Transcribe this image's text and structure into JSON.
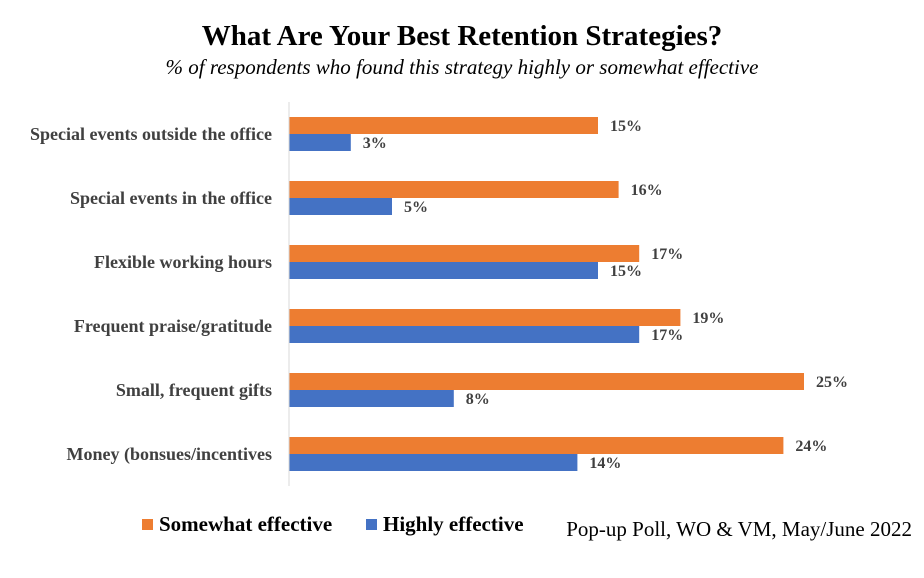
{
  "header": {
    "title": "What Are Your Best Retention Strategies?",
    "subtitle": "% of respondents who found this strategy highly or somewhat effective"
  },
  "source": "Pop-up Poll, WO & VM, May/June 2022",
  "colors": {
    "somewhat": "#ed7d31",
    "highly": "#4472c4",
    "axis": "#d9d9d9"
  },
  "chart_data": {
    "type": "bar",
    "orientation": "horizontal",
    "title": "What Are Your Best Retention Strategies?",
    "subtitle": "% of respondents who found this strategy highly or somewhat effective",
    "categories": [
      "Special events outside the office",
      "Special events in the office",
      "Flexible working hours",
      "Frequent praise/gratitude",
      "Small, frequent gifts",
      "Money (bonsues/incentives"
    ],
    "series": [
      {
        "name": "Somewhat effective",
        "values": [
          15,
          16,
          17,
          19,
          25,
          24
        ]
      },
      {
        "name": "Highly effective",
        "values": [
          3,
          5,
          15,
          17,
          8,
          14
        ]
      }
    ],
    "value_suffix": "%",
    "xlim": [
      0,
      28
    ],
    "grid": false,
    "legend": "bottom-left"
  }
}
